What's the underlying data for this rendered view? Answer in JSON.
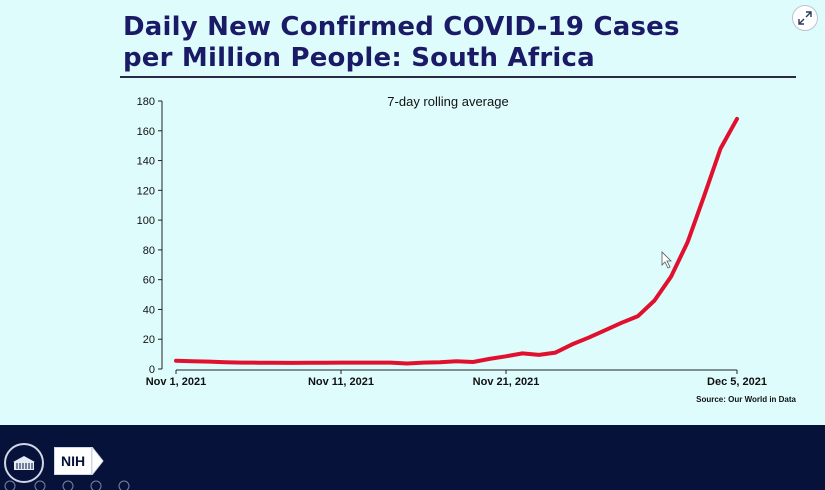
{
  "slide": {
    "title_line1": "Daily New Confirmed COVID-19 Cases",
    "title_line2": "per Million People: South Africa",
    "source_label": "Source: Our World in Data"
  },
  "footer": {
    "nih_label": "NIH"
  },
  "colors": {
    "background": "#dffcfd",
    "title": "#1a1a66",
    "line": "#e0112f",
    "footer": "#06123a"
  },
  "chart_data": {
    "type": "line",
    "subtitle": "7-day rolling average",
    "xlabel": "",
    "ylabel": "",
    "ylim": [
      0,
      180
    ],
    "yticks": [
      0,
      20,
      40,
      60,
      80,
      100,
      120,
      140,
      160,
      180
    ],
    "xlim": [
      "2021-11-01",
      "2021-12-05"
    ],
    "xtick_labels": [
      {
        "date": "2021-11-01",
        "label": "Nov 1, 2021"
      },
      {
        "date": "2021-11-11",
        "label": "Nov 11, 2021"
      },
      {
        "date": "2021-11-21",
        "label": "Nov 21, 2021"
      },
      {
        "date": "2021-12-05",
        "label": "Dec 5, 2021"
      }
    ],
    "grid": false,
    "series": [
      {
        "color": "#e0112f",
        "points": [
          {
            "x": "2021-11-01",
            "y": 5.5
          },
          {
            "x": "2021-11-02",
            "y": 5.2
          },
          {
            "x": "2021-11-03",
            "y": 5.0
          },
          {
            "x": "2021-11-04",
            "y": 4.6
          },
          {
            "x": "2021-11-05",
            "y": 4.3
          },
          {
            "x": "2021-11-06",
            "y": 4.2
          },
          {
            "x": "2021-11-07",
            "y": 4.2
          },
          {
            "x": "2021-11-08",
            "y": 4.1
          },
          {
            "x": "2021-11-09",
            "y": 4.2
          },
          {
            "x": "2021-11-10",
            "y": 4.2
          },
          {
            "x": "2021-11-11",
            "y": 4.3
          },
          {
            "x": "2021-11-12",
            "y": 4.3
          },
          {
            "x": "2021-11-13",
            "y": 4.3
          },
          {
            "x": "2021-11-14",
            "y": 4.3
          },
          {
            "x": "2021-11-15",
            "y": 3.7
          },
          {
            "x": "2021-11-16",
            "y": 4.3
          },
          {
            "x": "2021-11-17",
            "y": 4.6
          },
          {
            "x": "2021-11-18",
            "y": 5.2
          },
          {
            "x": "2021-11-19",
            "y": 4.7
          },
          {
            "x": "2021-11-20",
            "y": 6.8
          },
          {
            "x": "2021-11-21",
            "y": 8.5
          },
          {
            "x": "2021-11-22",
            "y": 10.5
          },
          {
            "x": "2021-11-23",
            "y": 9.5
          },
          {
            "x": "2021-11-24",
            "y": 11
          },
          {
            "x": "2021-11-25",
            "y": 16.5
          },
          {
            "x": "2021-11-26",
            "y": 21
          },
          {
            "x": "2021-11-27",
            "y": 26
          },
          {
            "x": "2021-11-28",
            "y": 31
          },
          {
            "x": "2021-11-29",
            "y": 35.5
          },
          {
            "x": "2021-11-30",
            "y": 46
          },
          {
            "x": "2021-12-01",
            "y": 62
          },
          {
            "x": "2021-12-02",
            "y": 85
          },
          {
            "x": "2021-12-03",
            "y": 116
          },
          {
            "x": "2021-12-04",
            "y": 148
          },
          {
            "x": "2021-12-05",
            "y": 168
          }
        ]
      }
    ]
  }
}
